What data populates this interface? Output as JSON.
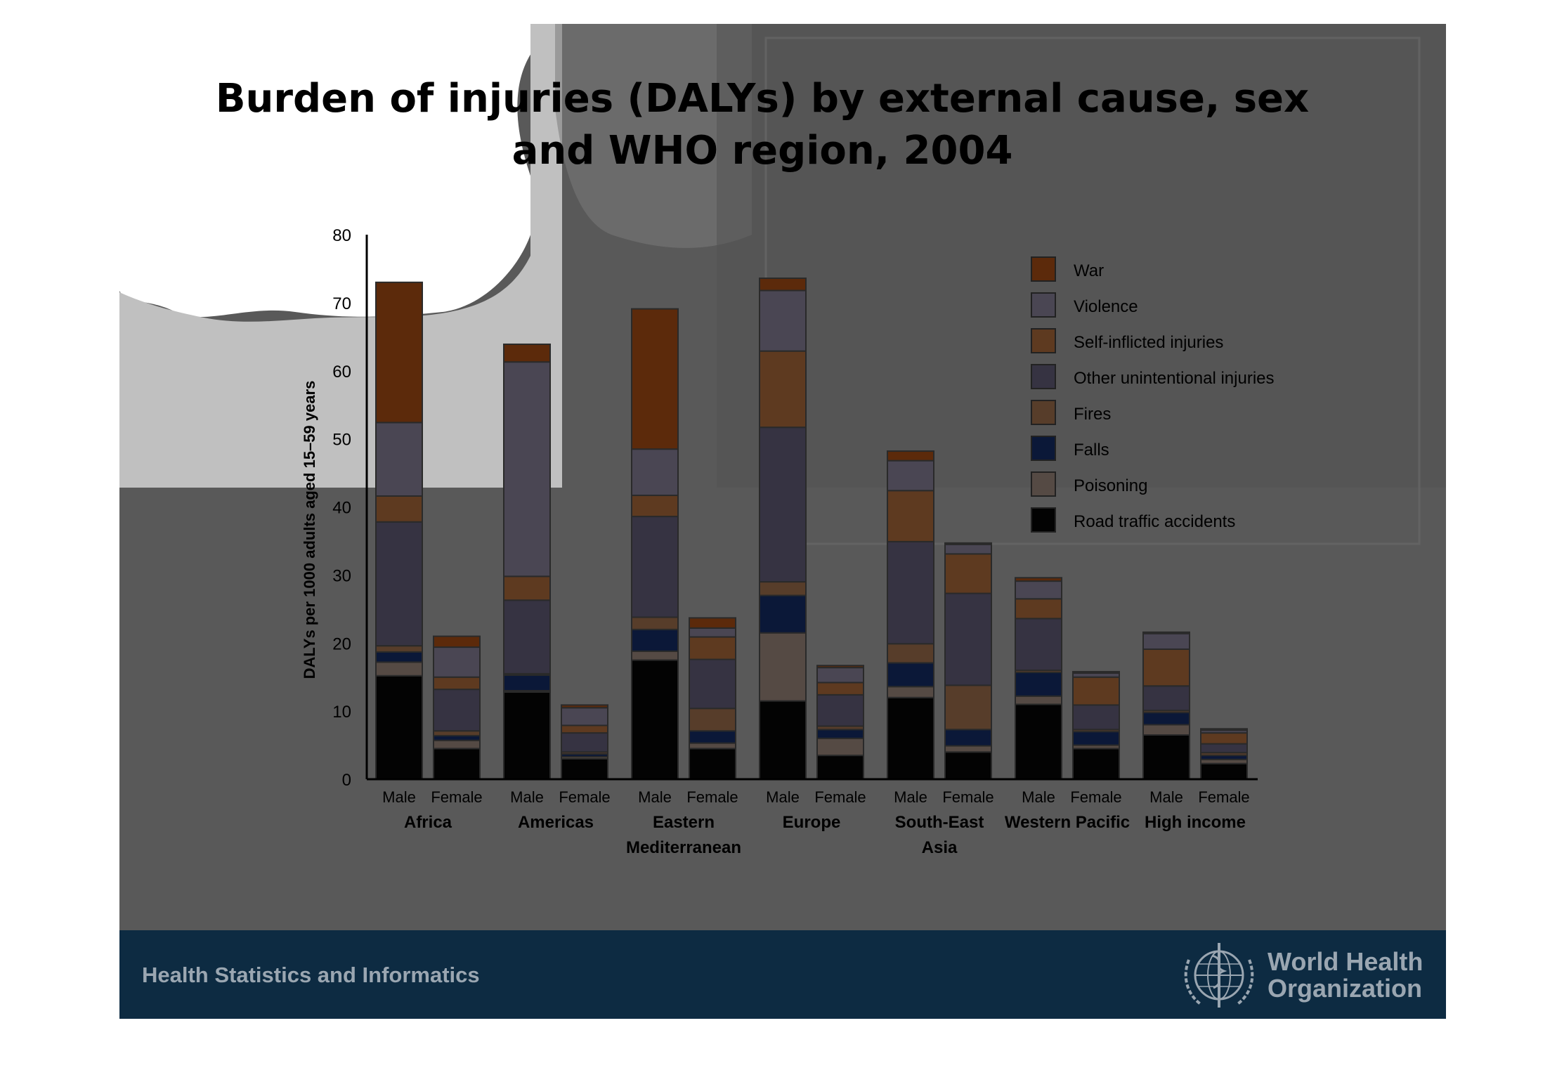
{
  "title_line1": "Burden of injuries (DALYs) by external cause, sex",
  "title_line2": "and WHO region, 2004",
  "footer": {
    "left_text": "Health Statistics and Informatics",
    "org_line1": "World Health",
    "org_line2": "Organization",
    "logo_icon": "who-emblem-icon"
  },
  "colors": {
    "slide_bg": "#595959",
    "footer_bg": "#0d2b42",
    "footer_text": "#9aa6b1"
  },
  "chart_data": {
    "type": "bar",
    "stacked": true,
    "title": "Burden of injuries (DALYs) by external cause, sex and WHO region, 2004",
    "ylabel": "DALYs per 1000 adults aged 15–59 years",
    "xlabel": "",
    "ylim": [
      0,
      80
    ],
    "yticks": [
      0,
      10,
      20,
      30,
      40,
      50,
      60,
      70,
      80
    ],
    "grid": false,
    "legend_position": "top-right",
    "groups": [
      {
        "region": [
          "Africa"
        ],
        "bars": [
          "Male",
          "Female"
        ]
      },
      {
        "region": [
          "Americas"
        ],
        "bars": [
          "Male",
          "Female"
        ]
      },
      {
        "region": [
          "Eastern",
          "Mediterranean"
        ],
        "bars": [
          "Male",
          "Female"
        ]
      },
      {
        "region": [
          "Europe"
        ],
        "bars": [
          "Male",
          "Female"
        ]
      },
      {
        "region": [
          "South-East",
          "Asia"
        ],
        "bars": [
          "Male",
          "Female"
        ]
      },
      {
        "region": [
          "Western Pacific"
        ],
        "bars": [
          "Male",
          "Female"
        ]
      },
      {
        "region": [
          "High income"
        ],
        "bars": [
          "Male",
          "Female"
        ]
      }
    ],
    "series": [
      {
        "name": "Road traffic accidents",
        "color": "#030303",
        "values": [
          15.2,
          4.5,
          12.8,
          3.0,
          17.5,
          4.5,
          11.5,
          3.5,
          12.0,
          4.0,
          11.0,
          4.5,
          6.5,
          2.3
        ]
      },
      {
        "name": "Poisoning",
        "color": "#554a44",
        "values": [
          2.0,
          1.2,
          0.2,
          0.3,
          1.3,
          0.8,
          10.0,
          2.5,
          1.6,
          0.9,
          1.2,
          0.5,
          1.5,
          0.6
        ]
      },
      {
        "name": "Falls",
        "color": "#0b1838",
        "values": [
          1.5,
          0.7,
          2.3,
          0.4,
          3.2,
          1.8,
          5.5,
          1.3,
          3.5,
          2.4,
          3.5,
          2.0,
          1.8,
          0.6
        ]
      },
      {
        "name": "Fires",
        "color": "#573d2a",
        "values": [
          0.9,
          0.7,
          0.2,
          0.3,
          1.8,
          3.3,
          2.0,
          0.5,
          2.8,
          6.5,
          0.3,
          0.3,
          0.3,
          0.4
        ]
      },
      {
        "name": "Other unintentional injuries",
        "color": "#363342",
        "values": [
          18.2,
          6.1,
          10.8,
          2.8,
          14.8,
          7.2,
          22.7,
          4.6,
          15.0,
          13.5,
          7.6,
          3.6,
          3.6,
          1.3
        ]
      },
      {
        "name": "Self-inflicted injuries",
        "color": "#5e3a20",
        "values": [
          3.8,
          1.8,
          3.5,
          1.1,
          3.1,
          3.3,
          11.2,
          1.8,
          7.5,
          5.8,
          2.9,
          4.1,
          5.4,
          1.6
        ]
      },
      {
        "name": "Violence",
        "color": "#4a4653",
        "values": [
          10.8,
          4.4,
          31.5,
          2.6,
          6.8,
          1.3,
          8.9,
          2.2,
          4.4,
          1.4,
          2.6,
          0.6,
          2.3,
          0.4
        ]
      },
      {
        "name": "War",
        "color": "#5c2a0b",
        "values": [
          20.6,
          1.6,
          2.6,
          0.4,
          20.6,
          1.5,
          1.8,
          0.3,
          1.4,
          0.2,
          0.5,
          0.2,
          0.2,
          0.2
        ]
      }
    ],
    "legend_order": [
      "War",
      "Violence",
      "Self-inflicted injuries",
      "Other unintentional injuries",
      "Fires",
      "Falls",
      "Poisoning",
      "Road traffic accidents"
    ]
  }
}
